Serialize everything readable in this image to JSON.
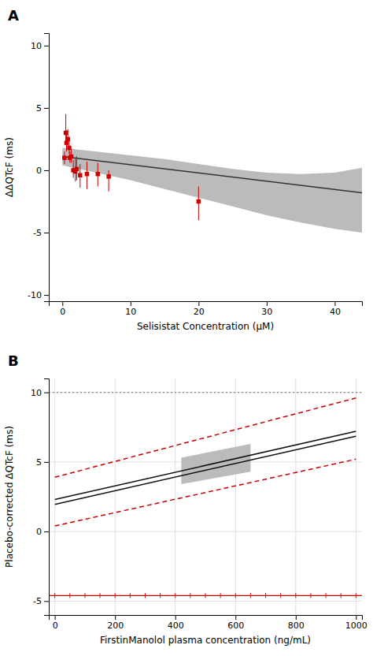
{
  "chart_data": [
    {
      "type": "scatter",
      "title": "A",
      "x_label": "Selisistat Concentration (μM)",
      "y_label": "ΔΔQTcF (ms)",
      "xlim": [
        -2,
        44
      ],
      "ylim": [
        -10.5,
        11
      ],
      "xticks": [
        0,
        10,
        20,
        30,
        40
      ],
      "yticks": [
        -10,
        -5,
        0,
        5,
        10
      ],
      "series": [
        {
          "type": "area",
          "color": "#bbbbbb",
          "x": [
            0,
            5,
            10,
            15,
            20,
            25,
            30,
            35,
            40,
            44
          ],
          "upper": [
            1.8,
            1.5,
            1.2,
            0.9,
            0.5,
            0.1,
            -0.2,
            -0.3,
            -0.2,
            0.2
          ],
          "lower": [
            0.4,
            -0.2,
            -0.8,
            -1.5,
            -2.2,
            -2.9,
            -3.6,
            -4.2,
            -4.7,
            -5.0
          ]
        },
        {
          "type": "line",
          "color": "#333333",
          "x": [
            0,
            44
          ],
          "values": [
            1.1,
            -1.8
          ]
        },
        {
          "type": "scatter",
          "color": "#cc0000",
          "marker": "square",
          "x": [
            0.3,
            0.5,
            0.6,
            0.8,
            1.0,
            1.1,
            1.3,
            1.6,
            1.9,
            2.1,
            2.6,
            3.6,
            5.2,
            6.8,
            20.0
          ],
          "values": [
            1.0,
            3.0,
            2.2,
            2.5,
            1.8,
            1.0,
            1.1,
            0.0,
            -0.1,
            0.1,
            -0.4,
            -0.3,
            -0.3,
            -0.5,
            -2.5
          ],
          "error_low": [
            0.5,
            0.7,
            0.7,
            0.6,
            0.5,
            0.4,
            0.5,
            0.6,
            0.8,
            0.9,
            1.0,
            1.2,
            1.0,
            1.2,
            1.5
          ],
          "error_high": [
            0.5,
            1.5,
            1.0,
            0.8,
            0.6,
            0.5,
            0.6,
            0.8,
            1.0,
            1.0,
            0.9,
            1.0,
            0.9,
            0.5,
            1.2
          ]
        }
      ]
    },
    {
      "type": "line",
      "title": "B",
      "x_label": "FirstinManolol plasma concentration (ng/mL)",
      "y_label": "Placebo-corrected ΔQTcF (ms)",
      "xlim": [
        -20,
        1020
      ],
      "ylim": [
        -6.0,
        11.0
      ],
      "xticks": [
        0,
        200,
        400,
        600,
        800,
        1000
      ],
      "yticks": [
        -5,
        0,
        5,
        10
      ],
      "grid": true,
      "series": [
        {
          "type": "hline",
          "color": "#888888",
          "line_style": "dotted",
          "values": [
            10
          ]
        },
        {
          "type": "line",
          "color": "#cc0000",
          "line_style": "dashed",
          "x": [
            0,
            1000
          ],
          "values": [
            3.9,
            9.6
          ]
        },
        {
          "type": "line",
          "color": "#cc0000",
          "line_style": "dashed",
          "x": [
            0,
            1000
          ],
          "values": [
            0.4,
            5.2
          ]
        },
        {
          "type": "hline",
          "color": "#cc0000",
          "values": [
            -4.6
          ],
          "rug_x": [
            0,
            50,
            100,
            150,
            200,
            250,
            300,
            350,
            400,
            450,
            500,
            550,
            600,
            650,
            700,
            750,
            800,
            850,
            900,
            950,
            1000
          ]
        },
        {
          "type": "area",
          "color": "#bbbbbb",
          "x": [
            420,
            650
          ],
          "lower": [
            3.4,
            4.3
          ],
          "upper": [
            5.3,
            6.3
          ]
        },
        {
          "type": "line",
          "color": "#111111",
          "x": [
            0,
            1000
          ],
          "values": [
            2.3,
            7.2
          ]
        },
        {
          "type": "line",
          "color": "#111111",
          "x": [
            0,
            1000
          ],
          "values": [
            1.95,
            6.85
          ]
        }
      ]
    }
  ]
}
